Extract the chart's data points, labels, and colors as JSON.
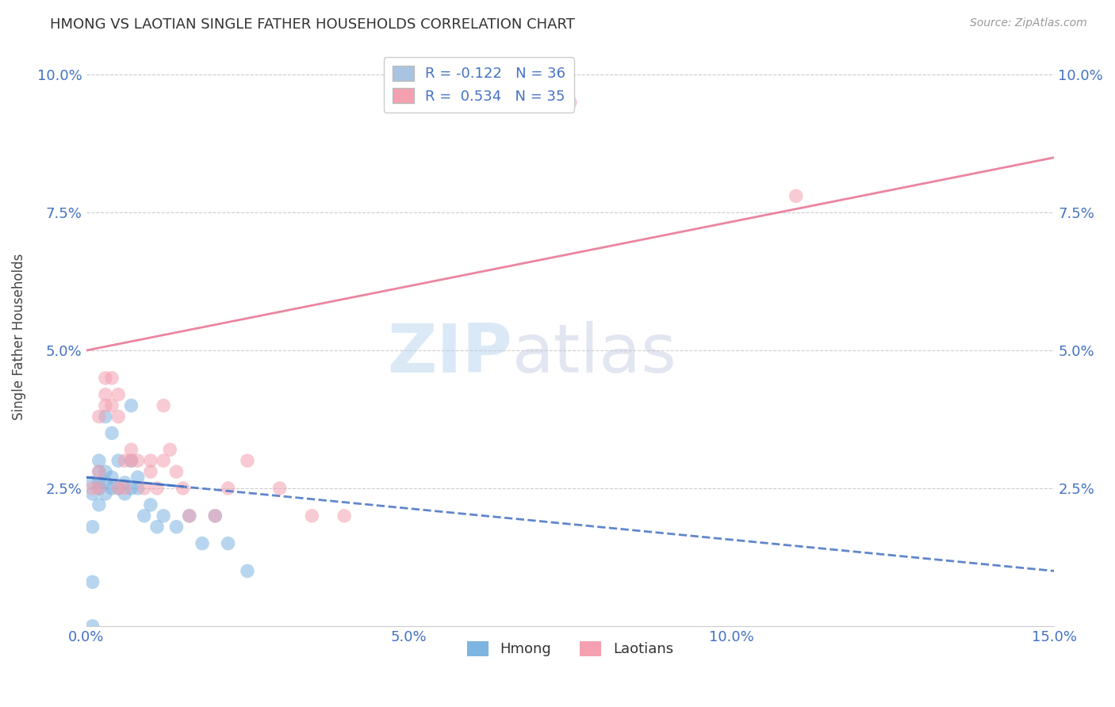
{
  "title": "HMONG VS LAOTIAN SINGLE FATHER HOUSEHOLDS CORRELATION CHART",
  "source": "Source: ZipAtlas.com",
  "xlabel": "",
  "ylabel": "Single Father Households",
  "xlim": [
    0.0,
    0.15
  ],
  "ylim": [
    0.0,
    0.105
  ],
  "xticks": [
    0.0,
    0.05,
    0.1,
    0.15
  ],
  "xticklabels": [
    "0.0%",
    "5.0%",
    "10.0%",
    "15.0%"
  ],
  "yticks": [
    0.025,
    0.05,
    0.075,
    0.1
  ],
  "yticklabels": [
    "2.5%",
    "5.0%",
    "7.5%",
    "10.0%"
  ],
  "legend_items": [
    {
      "label": "R = -0.122   N = 36",
      "color": "#a8c4e0"
    },
    {
      "label": "R =  0.534   N = 35",
      "color": "#f4a0b0"
    }
  ],
  "hmong_color": "#7db4e0",
  "laotian_color": "#f4a0b0",
  "hmong_line_color": "#4472c4",
  "laotian_line_color": "#e87090",
  "watermark_zip": "ZIP",
  "watermark_atlas": "atlas",
  "background_color": "#ffffff",
  "grid_color": "#c8c8c8",
  "hmong_x": [
    0.001,
    0.001,
    0.001,
    0.001,
    0.001,
    0.002,
    0.002,
    0.002,
    0.002,
    0.002,
    0.003,
    0.003,
    0.003,
    0.003,
    0.004,
    0.004,
    0.004,
    0.005,
    0.005,
    0.006,
    0.006,
    0.007,
    0.007,
    0.007,
    0.008,
    0.008,
    0.009,
    0.01,
    0.011,
    0.012,
    0.014,
    0.016,
    0.018,
    0.02,
    0.022,
    0.025
  ],
  "hmong_y": [
    0.0,
    0.008,
    0.018,
    0.024,
    0.026,
    0.022,
    0.025,
    0.026,
    0.028,
    0.03,
    0.024,
    0.026,
    0.028,
    0.038,
    0.025,
    0.027,
    0.035,
    0.025,
    0.03,
    0.024,
    0.026,
    0.025,
    0.03,
    0.04,
    0.025,
    0.027,
    0.02,
    0.022,
    0.018,
    0.02,
    0.018,
    0.02,
    0.015,
    0.02,
    0.015,
    0.01
  ],
  "laotian_x": [
    0.001,
    0.002,
    0.002,
    0.002,
    0.003,
    0.003,
    0.003,
    0.004,
    0.004,
    0.005,
    0.005,
    0.005,
    0.006,
    0.006,
    0.007,
    0.007,
    0.008,
    0.009,
    0.01,
    0.01,
    0.011,
    0.012,
    0.012,
    0.013,
    0.014,
    0.015,
    0.016,
    0.02,
    0.022,
    0.025,
    0.03,
    0.035,
    0.04,
    0.075,
    0.11
  ],
  "laotian_y": [
    0.025,
    0.025,
    0.028,
    0.038,
    0.04,
    0.042,
    0.045,
    0.04,
    0.045,
    0.025,
    0.038,
    0.042,
    0.025,
    0.03,
    0.03,
    0.032,
    0.03,
    0.025,
    0.028,
    0.03,
    0.025,
    0.03,
    0.04,
    0.032,
    0.028,
    0.025,
    0.02,
    0.02,
    0.025,
    0.03,
    0.025,
    0.02,
    0.02,
    0.095,
    0.078
  ],
  "hmong_line_x0": 0.0,
  "hmong_line_y0": 0.027,
  "hmong_line_x1": 0.15,
  "hmong_line_y1": 0.01,
  "laotian_line_x0": 0.0,
  "laotian_line_y0": 0.05,
  "laotian_line_x1": 0.15,
  "laotian_line_y1": 0.085
}
